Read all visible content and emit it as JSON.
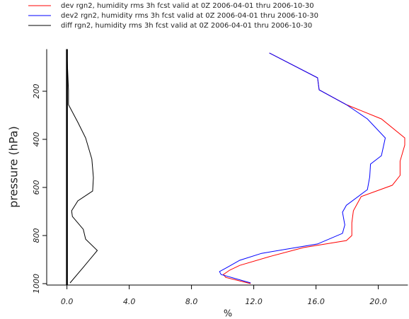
{
  "chart_data": {
    "type": "line",
    "x_label": "%",
    "y_label": "pressure (hPa)",
    "xlim": [
      -1.3,
      21.9
    ],
    "ylim": [
      1000,
      25
    ],
    "xticks": [
      {
        "value": 0,
        "label": "0.0"
      },
      {
        "value": 4,
        "label": "4.0"
      },
      {
        "value": 8,
        "label": "8.0"
      },
      {
        "value": 12,
        "label": "12.0"
      },
      {
        "value": 16,
        "label": "16.0"
      },
      {
        "value": 20,
        "label": "20.0"
      }
    ],
    "yticks": [
      200,
      400,
      600,
      800,
      1000
    ],
    "series": [
      {
        "name": "dev rgn2, humidity rms 3h fcst valid at 0Z 2006-04-01 thru 2006-10-30",
        "color": "#ff0000",
        "values": [
          13.0,
          16.1,
          16.2,
          17.95,
          20.2,
          21.7,
          21.7,
          21.4,
          21.4,
          20.9,
          18.9,
          18.4,
          18.3,
          18.3,
          17.95,
          15.2,
          13.0,
          11.1,
          10.45,
          10.05,
          10.2,
          11.8
        ],
        "y": [
          41,
          144,
          194,
          256,
          315,
          394,
          424,
          491,
          550,
          591,
          638,
          697,
          747,
          800,
          821,
          850,
          888,
          924,
          944,
          962,
          974,
          1000
        ]
      },
      {
        "name": "dev2 rgn2, humidity rms 3h fcst valid at 0Z 2006-04-01 thru 2006-10-30",
        "color": "#0000ff",
        "values": [
          13.0,
          16.1,
          16.2,
          17.95,
          19.3,
          20.45,
          20.2,
          19.5,
          19.45,
          19.3,
          17.95,
          17.7,
          17.85,
          17.7,
          16.1,
          12.5,
          11.1,
          10.3,
          9.8,
          9.9,
          11.8
        ],
        "y": [
          41,
          144,
          194,
          256,
          315,
          394,
          468,
          503,
          556,
          609,
          674,
          703,
          756,
          791,
          835,
          874,
          903,
          932,
          950,
          962,
          997
        ]
      },
      {
        "name": "diff rgn2, humidity rms 3h fcst valid at 0Z 2006-04-01 thru 2006-10-30",
        "color": "#000000",
        "values": [
          0,
          0.1,
          0.1,
          0.7,
          1.2,
          1.6,
          1.7,
          1.65,
          0.7,
          0.3,
          0.35,
          1.05,
          1.2,
          1.95,
          1.05,
          0.2
        ],
        "y": [
          41,
          197,
          256,
          329,
          394,
          482,
          559,
          615,
          656,
          697,
          721,
          774,
          815,
          862,
          932,
          997
        ]
      }
    ]
  }
}
